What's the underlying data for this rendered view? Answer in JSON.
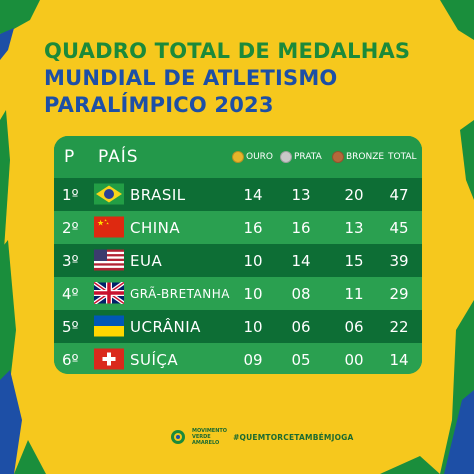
{
  "title": {
    "line1": "QUADRO TOTAL DE MEDALHAS",
    "line2": "MUNDIAL DE ATLETISMO",
    "line3": "PARALÍMPICO 2023"
  },
  "table": {
    "headers": {
      "position": "P",
      "country": "PAÍS",
      "gold": "OURO",
      "silver": "PRATA",
      "bronze": "BRONZE",
      "total": "TOTAL"
    },
    "rows": [
      {
        "pos": "1º",
        "country": "BRASIL",
        "flag": "brazil-flag",
        "gold": "14",
        "silver": "13",
        "bronze": "20",
        "total": "47"
      },
      {
        "pos": "2º",
        "country": "CHINA",
        "flag": "china-flag",
        "gold": "16",
        "silver": "16",
        "bronze": "13",
        "total": "45"
      },
      {
        "pos": "3º",
        "country": "EUA",
        "flag": "usa-flag",
        "gold": "10",
        "silver": "14",
        "bronze": "15",
        "total": "39"
      },
      {
        "pos": "4º",
        "country": "GRÃ-BRETANHA",
        "flag": "uk-flag",
        "gold": "10",
        "silver": "08",
        "bronze": "11",
        "total": "29"
      },
      {
        "pos": "5º",
        "country": "UCRÂNIA",
        "flag": "ukraine-flag",
        "gold": "10",
        "silver": "06",
        "bronze": "06",
        "total": "22"
      },
      {
        "pos": "6º",
        "country": "SUÍÇA",
        "flag": "switzerland-flag",
        "gold": "09",
        "silver": "05",
        "bronze": "00",
        "total": "14"
      }
    ]
  },
  "footer": {
    "hashtag": "#QUEMTORCETAMBÉMJOGA",
    "logo_line1": "MOVIMENTO",
    "logo_line2": "VERDE",
    "logo_line3": "AMARELO"
  },
  "colors": {
    "background": "#f6c81d",
    "table_green": "#23984a",
    "row_dark": "#0d6e35",
    "title_green": "#1c8a3a",
    "title_blue": "#1d4fa6"
  }
}
